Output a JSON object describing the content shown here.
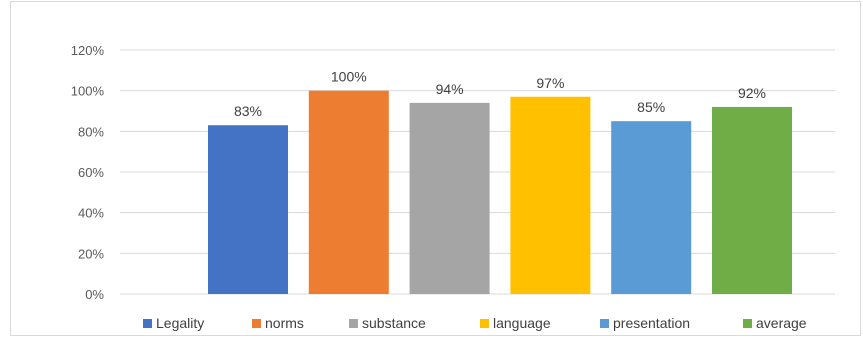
{
  "chart_data": {
    "type": "bar",
    "categories": [
      "Legality",
      "norms",
      "substance",
      "language",
      "presentation",
      "average"
    ],
    "values": [
      83,
      100,
      94,
      97,
      85,
      92
    ],
    "data_labels": [
      "83%",
      "100%",
      "94%",
      "97%",
      "85%",
      "92%"
    ],
    "colors": [
      "#4472c4",
      "#ed7d31",
      "#a5a5a5",
      "#ffc000",
      "#5b9bd5",
      "#70ad47"
    ],
    "title": "",
    "xlabel": "",
    "ylabel": "",
    "ylim": [
      0,
      120
    ],
    "yticks": [
      0,
      20,
      40,
      60,
      80,
      100,
      120
    ],
    "ytick_labels": [
      "0%",
      "20%",
      "40%",
      "60%",
      "80%",
      "100%",
      "120%"
    ],
    "grid": true,
    "legend": {
      "position": "bottom",
      "entries": [
        "Legality",
        "norms",
        "substance",
        "language",
        "presentation",
        "average"
      ]
    }
  }
}
